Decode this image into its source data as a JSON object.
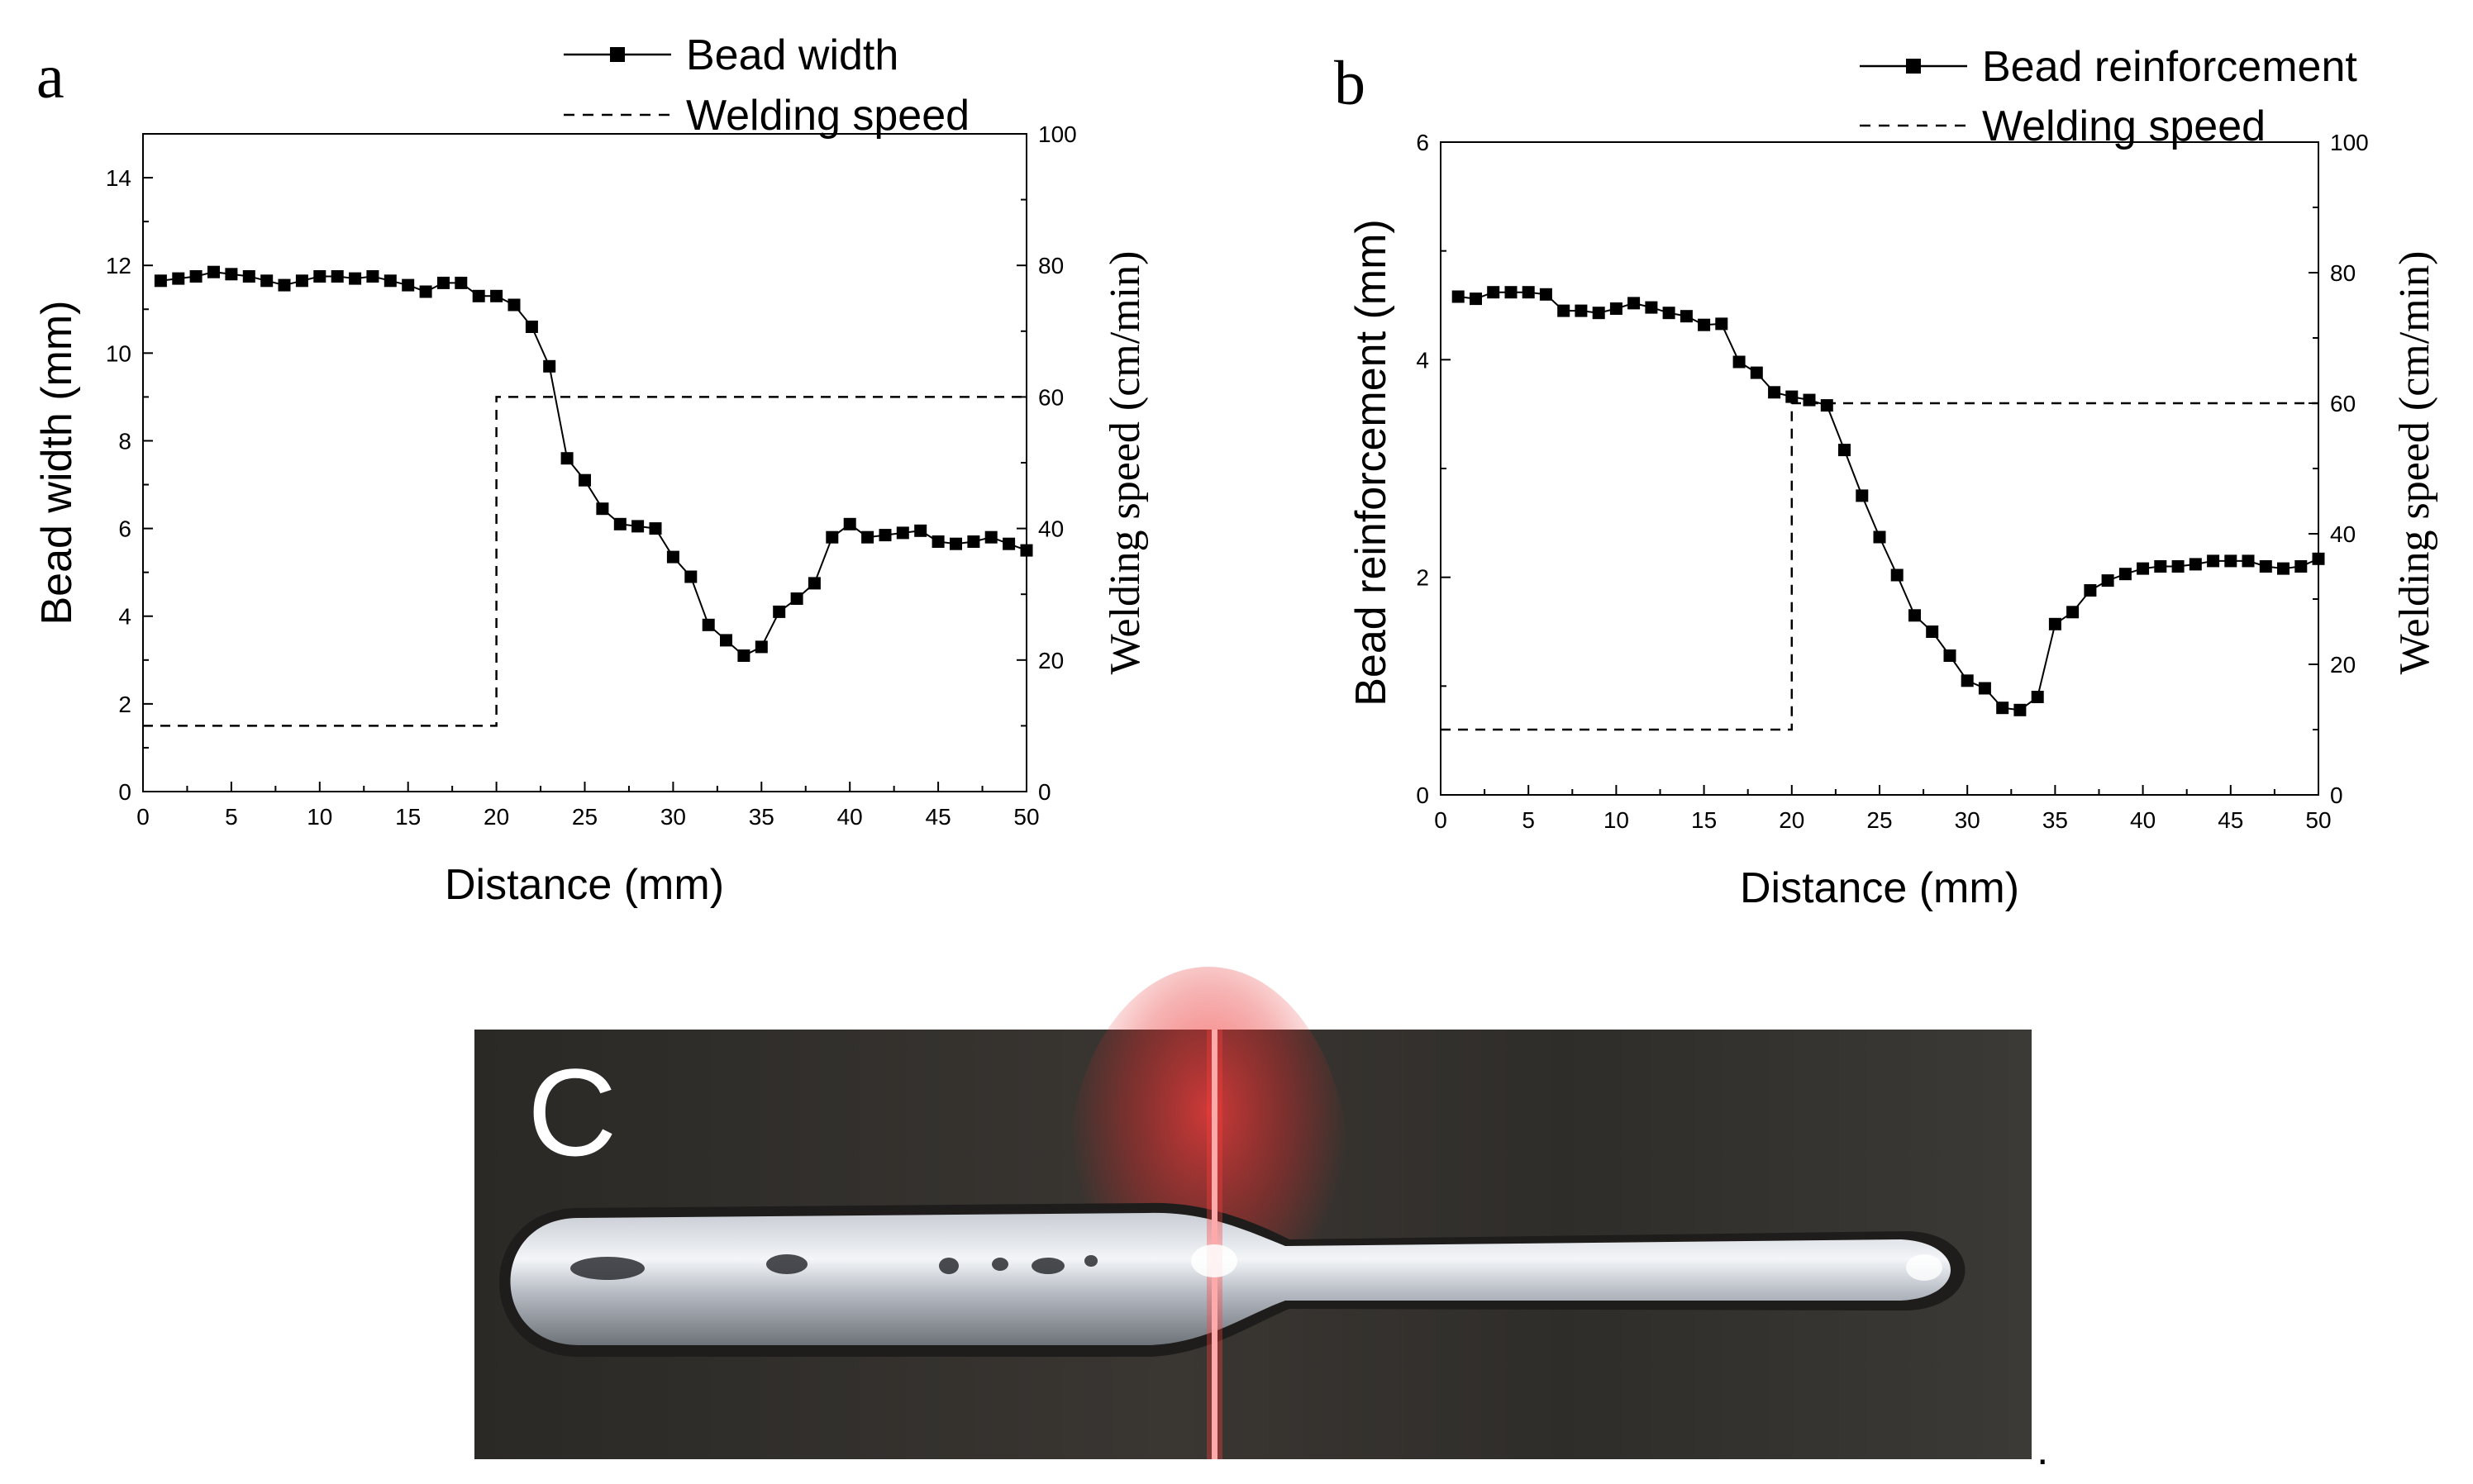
{
  "chart_data": [
    {
      "panel": "a",
      "type": "line",
      "xlabel": "Distance (mm)",
      "ylabel": "Bead width (mm)",
      "y2label": "Welding speed (cm/min)",
      "xlim": [
        0,
        50
      ],
      "ylim": [
        0,
        15
      ],
      "y2lim": [
        0,
        100
      ],
      "xticks": [
        "0",
        "5",
        "10",
        "15",
        "20",
        "25",
        "30",
        "35",
        "40",
        "45",
        "50"
      ],
      "yticks": [
        "0",
        "2",
        "4",
        "6",
        "8",
        "10",
        "12",
        "14"
      ],
      "y2ticks": [
        "0",
        "20",
        "40",
        "60",
        "80",
        "100"
      ],
      "legend_position": "top-right",
      "series": [
        {
          "name": "Bead width",
          "axis": "left",
          "style": "solid-square-markers",
          "x": [
            1,
            2,
            3,
            4,
            5,
            6,
            7,
            8,
            9,
            10,
            11,
            12,
            13,
            14,
            15,
            16,
            17,
            18,
            19,
            20,
            21,
            22,
            23,
            24,
            25,
            26,
            27,
            28,
            29,
            30,
            31,
            32,
            33,
            34,
            35,
            36,
            37,
            38,
            39,
            40,
            41,
            42,
            43,
            44,
            45,
            46,
            47,
            48,
            49,
            50
          ],
          "values": [
            11.65,
            11.7,
            11.75,
            11.85,
            11.8,
            11.75,
            11.65,
            11.55,
            11.65,
            11.75,
            11.75,
            11.7,
            11.75,
            11.65,
            11.55,
            11.4,
            11.6,
            11.6,
            11.3,
            11.3,
            11.1,
            10.6,
            9.7,
            7.6,
            7.1,
            6.45,
            6.1,
            6.05,
            6.0,
            5.35,
            4.9,
            3.8,
            3.45,
            3.1,
            3.3,
            4.1,
            4.4,
            4.75,
            5.8,
            6.1,
            5.8,
            5.85,
            5.9,
            5.95,
            5.7,
            5.65,
            5.7,
            5.8,
            5.65,
            5.5
          ]
        },
        {
          "name": "Welding speed",
          "axis": "right",
          "style": "dashed",
          "x": [
            0,
            20,
            20,
            50
          ],
          "values": [
            10,
            10,
            60,
            60
          ]
        }
      ]
    },
    {
      "panel": "b",
      "type": "line",
      "xlabel": "Distance (mm)",
      "ylabel": "Bead reinforcement (mm)",
      "y2label": "Welding speed (cm/min)",
      "xlim": [
        0,
        50
      ],
      "ylim": [
        0,
        6
      ],
      "y2lim": [
        0,
        100
      ],
      "xticks": [
        "0",
        "5",
        "10",
        "15",
        "20",
        "25",
        "30",
        "35",
        "40",
        "45",
        "50"
      ],
      "yticks": [
        "0",
        "2",
        "4",
        "6"
      ],
      "y2ticks": [
        "0",
        "20",
        "40",
        "60",
        "80",
        "100"
      ],
      "legend_position": "top-right",
      "series": [
        {
          "name": "Bead reinforcement",
          "axis": "left",
          "style": "solid-square-markers",
          "x": [
            1,
            2,
            3,
            4,
            5,
            6,
            7,
            8,
            9,
            10,
            11,
            12,
            13,
            14,
            15,
            16,
            17,
            18,
            19,
            20,
            21,
            22,
            23,
            24,
            25,
            26,
            27,
            28,
            29,
            30,
            31,
            32,
            33,
            34,
            35,
            36,
            37,
            38,
            39,
            40,
            41,
            42,
            43,
            44,
            45,
            46,
            47,
            48,
            49,
            50
          ],
          "values": [
            4.58,
            4.56,
            4.62,
            4.62,
            4.62,
            4.6,
            4.45,
            4.45,
            4.43,
            4.47,
            4.52,
            4.48,
            4.43,
            4.4,
            4.32,
            4.33,
            3.98,
            3.88,
            3.7,
            3.66,
            3.63,
            3.58,
            3.17,
            2.75,
            2.37,
            2.02,
            1.65,
            1.5,
            1.28,
            1.05,
            0.98,
            0.8,
            0.78,
            0.9,
            1.57,
            1.68,
            1.88,
            1.97,
            2.03,
            2.08,
            2.1,
            2.1,
            2.12,
            2.15,
            2.15,
            2.15,
            2.1,
            2.08,
            2.1,
            2.17
          ]
        },
        {
          "name": "Welding speed",
          "axis": "right",
          "style": "dashed",
          "x": [
            0,
            20,
            20,
            50
          ],
          "values": [
            10,
            10,
            60,
            60
          ]
        }
      ]
    }
  ],
  "photo": {
    "label": "C",
    "trailing_mark": "."
  }
}
